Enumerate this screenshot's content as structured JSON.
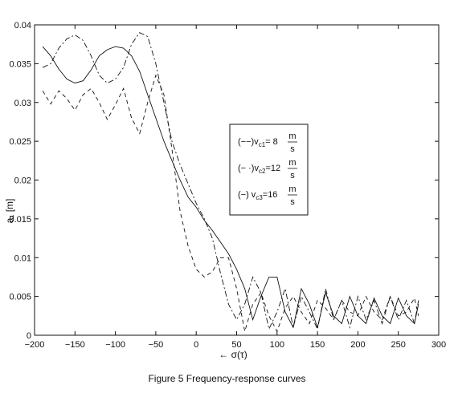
{
  "chart_data": {
    "type": "line",
    "title": "",
    "xlabel": "← σ(τ)",
    "ylabel": "a₁ [m]",
    "xlim": [
      -200,
      300
    ],
    "ylim": [
      0,
      0.04
    ],
    "xticks": [
      -200,
      -150,
      -100,
      -50,
      0,
      50,
      100,
      150,
      200,
      250,
      300
    ],
    "xtick_labels": [
      "−200",
      "−150",
      "−100",
      "−50",
      "0",
      "50",
      "100",
      "150",
      "200",
      "250",
      "300"
    ],
    "yticks": [
      0,
      0.005,
      0.01,
      0.015,
      0.02,
      0.025,
      0.03,
      0.035,
      0.04
    ],
    "ytick_labels": [
      "0",
      "0.005",
      "0.01",
      "0.015",
      "0.02",
      "0.025",
      "0.03",
      "0.035",
      "0.04"
    ],
    "grid": false,
    "legend_position": "center-right",
    "series": [
      {
        "name": "(−−)v_c1 = 8 m/s",
        "legend": {
          "prefix": "(−−)v",
          "sub": "c1",
          "eq": "= 8",
          "num": "m",
          "den": "s"
        },
        "style": "dashed",
        "x": [
          -190,
          -180,
          -170,
          -160,
          -150,
          -140,
          -130,
          -120,
          -110,
          -100,
          -90,
          -80,
          -70,
          -60,
          -50,
          -40,
          -30,
          -20,
          -10,
          0,
          10,
          20,
          30,
          40,
          50,
          60,
          70,
          80,
          90,
          100,
          110,
          120,
          130,
          140,
          150,
          160,
          170,
          180,
          190,
          200,
          210,
          220,
          230,
          240,
          250,
          260,
          270,
          275
        ],
        "y": [
          0.0315,
          0.0298,
          0.0315,
          0.0305,
          0.029,
          0.031,
          0.0318,
          0.03,
          0.0278,
          0.0297,
          0.0318,
          0.028,
          0.026,
          0.03,
          0.0335,
          0.031,
          0.024,
          0.016,
          0.0115,
          0.0085,
          0.0075,
          0.0082,
          0.01,
          0.01,
          0.006,
          0.0005,
          0.004,
          0.0055,
          0.0025,
          0.0005,
          0.0035,
          0.005,
          0.003,
          0.0015,
          0.0045,
          0.0035,
          0.002,
          0.0045,
          0.003,
          0.0025,
          0.005,
          0.003,
          0.002,
          0.005,
          0.0025,
          0.003,
          0.0048,
          0.0025
        ]
      },
      {
        "name": "(−·)v_c2 = 12 m/s",
        "legend": {
          "prefix": "(− ·)v",
          "sub": "c2",
          "eq": "=12",
          "num": "m",
          "den": "s"
        },
        "style": "dashdot",
        "x": [
          -190,
          -180,
          -170,
          -160,
          -150,
          -140,
          -130,
          -120,
          -110,
          -100,
          -90,
          -80,
          -70,
          -60,
          -50,
          -40,
          -30,
          -20,
          -10,
          0,
          10,
          20,
          30,
          40,
          50,
          60,
          70,
          80,
          90,
          100,
          110,
          120,
          130,
          140,
          150,
          160,
          170,
          180,
          190,
          200,
          210,
          220,
          230,
          240,
          250,
          260,
          270,
          275
        ],
        "y": [
          0.0345,
          0.035,
          0.037,
          0.0382,
          0.0387,
          0.038,
          0.036,
          0.0335,
          0.0325,
          0.033,
          0.0345,
          0.0375,
          0.039,
          0.0385,
          0.035,
          0.03,
          0.025,
          0.022,
          0.0195,
          0.017,
          0.015,
          0.0125,
          0.008,
          0.004,
          0.002,
          0.004,
          0.0075,
          0.0055,
          0.0008,
          0.003,
          0.006,
          0.001,
          0.005,
          0.003,
          0.0008,
          0.006,
          0.002,
          0.0045,
          0.001,
          0.005,
          0.002,
          0.0045,
          0.0015,
          0.005,
          0.002,
          0.0045,
          0.0015,
          0.0045
        ]
      },
      {
        "name": "(−) v_c3 = 16 m/s",
        "legend": {
          "prefix": "(−)  v",
          "sub": "c3",
          "eq": "=16",
          "num": "m",
          "den": "s"
        },
        "style": "solid",
        "x": [
          -190,
          -180,
          -170,
          -160,
          -150,
          -140,
          -130,
          -120,
          -110,
          -100,
          -90,
          -80,
          -70,
          -60,
          -50,
          -40,
          -30,
          -20,
          -10,
          0,
          10,
          20,
          30,
          40,
          50,
          60,
          70,
          80,
          90,
          100,
          110,
          120,
          130,
          140,
          150,
          160,
          170,
          180,
          190,
          200,
          210,
          220,
          230,
          240,
          250,
          260,
          270,
          275
        ],
        "y": [
          0.0372,
          0.036,
          0.0343,
          0.033,
          0.0325,
          0.0328,
          0.0342,
          0.036,
          0.0368,
          0.0372,
          0.037,
          0.036,
          0.034,
          0.031,
          0.028,
          0.025,
          0.0225,
          0.02,
          0.0178,
          0.0165,
          0.0148,
          0.0135,
          0.012,
          0.0105,
          0.0085,
          0.006,
          0.002,
          0.005,
          0.0075,
          0.0075,
          0.003,
          0.001,
          0.006,
          0.004,
          0.001,
          0.0055,
          0.0025,
          0.0015,
          0.005,
          0.0025,
          0.0015,
          0.0048,
          0.0025,
          0.0015,
          0.0048,
          0.0025,
          0.0015,
          0.004
        ]
      }
    ]
  },
  "caption": "Figure 5 Frequency-response curves"
}
